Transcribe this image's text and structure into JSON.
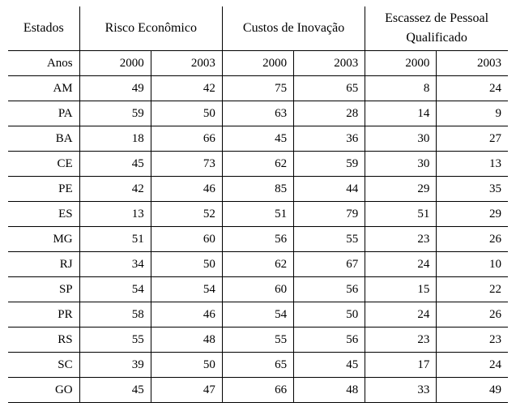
{
  "headers": {
    "estados": "Estados",
    "risco": "Risco Econômico",
    "custos": "Custos de Inovação",
    "escassez_l1": "Escassez de Pessoal",
    "escassez_l2": "Qualificado",
    "anos": "Anos",
    "y2000": "2000",
    "y2003": "2003"
  },
  "rows": [
    {
      "label": "AM",
      "risco2000": "49",
      "risco2003": "42",
      "custos2000": "75",
      "custos2003": "65",
      "esc2000": "8",
      "esc2003": "24"
    },
    {
      "label": "PA",
      "risco2000": "59",
      "risco2003": "50",
      "custos2000": "63",
      "custos2003": "28",
      "esc2000": "14",
      "esc2003": "9"
    },
    {
      "label": "BA",
      "risco2000": "18",
      "risco2003": "66",
      "custos2000": "45",
      "custos2003": "36",
      "esc2000": "30",
      "esc2003": "27"
    },
    {
      "label": "CE",
      "risco2000": "45",
      "risco2003": "73",
      "custos2000": "62",
      "custos2003": "59",
      "esc2000": "30",
      "esc2003": "13"
    },
    {
      "label": "PE",
      "risco2000": "42",
      "risco2003": "46",
      "custos2000": "85",
      "custos2003": "44",
      "esc2000": "29",
      "esc2003": "35"
    },
    {
      "label": "ES",
      "risco2000": "13",
      "risco2003": "52",
      "custos2000": "51",
      "custos2003": "79",
      "esc2000": "51",
      "esc2003": "29"
    },
    {
      "label": "MG",
      "risco2000": "51",
      "risco2003": "60",
      "custos2000": "56",
      "custos2003": "55",
      "esc2000": "23",
      "esc2003": "26"
    },
    {
      "label": "RJ",
      "risco2000": "34",
      "risco2003": "50",
      "custos2000": "62",
      "custos2003": "67",
      "esc2000": "24",
      "esc2003": "10"
    },
    {
      "label": "SP",
      "risco2000": "54",
      "risco2003": "54",
      "custos2000": "60",
      "custos2003": "56",
      "esc2000": "15",
      "esc2003": "22"
    },
    {
      "label": "PR",
      "risco2000": "58",
      "risco2003": "46",
      "custos2000": "54",
      "custos2003": "50",
      "esc2000": "24",
      "esc2003": "26"
    },
    {
      "label": "RS",
      "risco2000": "55",
      "risco2003": "48",
      "custos2000": "55",
      "custos2003": "56",
      "esc2000": "23",
      "esc2003": "23"
    },
    {
      "label": "SC",
      "risco2000": "39",
      "risco2003": "50",
      "custos2000": "65",
      "custos2003": "45",
      "esc2000": "17",
      "esc2003": "24"
    },
    {
      "label": "GO",
      "risco2000": "45",
      "risco2003": "47",
      "custos2000": "66",
      "custos2003": "48",
      "esc2000": "33",
      "esc2003": "49"
    }
  ]
}
